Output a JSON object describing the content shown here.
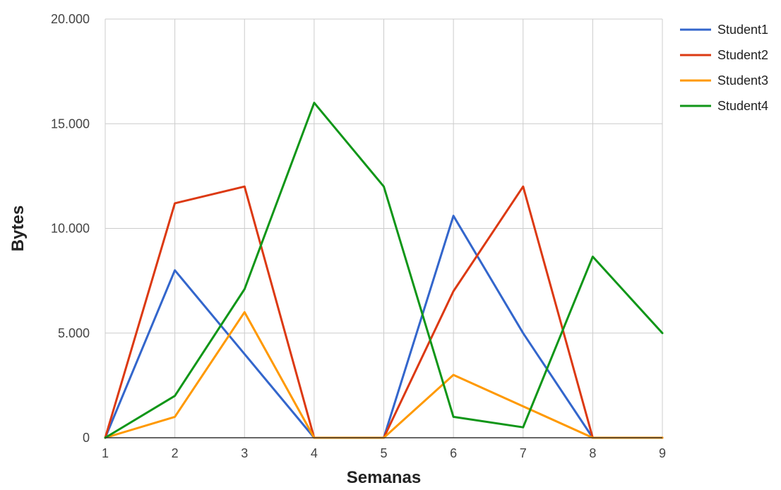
{
  "chart_data": {
    "type": "line",
    "title": "",
    "xlabel": "Semanas",
    "ylabel": "Bytes",
    "x": [
      1,
      2,
      3,
      4,
      5,
      6,
      7,
      8,
      9
    ],
    "xlim": [
      1,
      9
    ],
    "ylim": [
      0,
      20000
    ],
    "y_ticks": [
      0,
      5000,
      10000,
      15000,
      20000
    ],
    "y_tick_labels": [
      "0",
      "5.000",
      "10.000",
      "15.000",
      "20.000"
    ],
    "x_tick_labels": [
      "1",
      "2",
      "3",
      "4",
      "5",
      "6",
      "7",
      "8",
      "9"
    ],
    "grid": true,
    "legend_position": "right",
    "series": [
      {
        "name": "Student1",
        "color": "#3366cc",
        "values": [
          0,
          8000,
          4000,
          0,
          0,
          10600,
          5000,
          0,
          0
        ]
      },
      {
        "name": "Student2",
        "color": "#dc3912",
        "values": [
          0,
          11200,
          12000,
          0,
          0,
          7000,
          12000,
          0,
          0
        ]
      },
      {
        "name": "Student3",
        "color": "#ff9900",
        "values": [
          0,
          1000,
          6000,
          0,
          0,
          3000,
          1500,
          0,
          0
        ]
      },
      {
        "name": "Student4",
        "color": "#109618",
        "values": [
          0,
          2000,
          7100,
          16000,
          12000,
          1000,
          500,
          8650,
          5000
        ]
      }
    ]
  }
}
